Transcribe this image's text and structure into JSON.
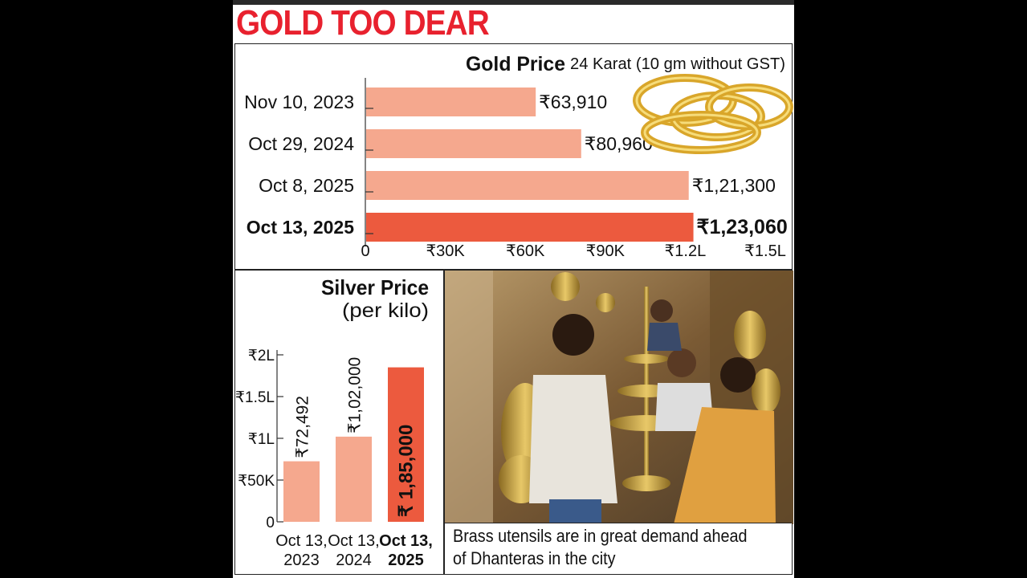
{
  "headline": "GOLD TOO DEAR",
  "gold": {
    "title": "Gold Price",
    "subtitle": "24 Karat (10 gm without GST)"
  },
  "silver": {
    "title": "Silver Price",
    "subtitle": "(per kilo)"
  },
  "photo": {
    "caption_line1": "Brass utensils are in great demand ahead",
    "caption_line2": "of Dhanteras in the city",
    "image_icon": "shop-photo-icon"
  },
  "colors": {
    "headline_red": "#e8212e",
    "bar_light": "#f5a88e",
    "bar_highlight": "#ec5a3e"
  },
  "chart_data": [
    {
      "type": "bar",
      "orientation": "horizontal",
      "title": "Gold Price",
      "subtitle": "24 Karat (10 gm without GST)",
      "categories": [
        "Nov 10, 2023",
        "Oct 29, 2024",
        "Oct 8, 2025",
        "Oct 13, 2025"
      ],
      "values": [
        63910,
        80960,
        121300,
        123060
      ],
      "value_labels": [
        "₹63,910",
        "₹80,960",
        "₹1,21,300",
        "₹1,23,060"
      ],
      "highlight_index": 3,
      "xlim": [
        0,
        150000
      ],
      "ticks": [
        0,
        30000,
        60000,
        90000,
        120000,
        150000
      ],
      "tick_labels": [
        "0",
        "₹30K",
        "₹60K",
        "₹90K",
        "₹1.2L",
        "₹1.5L"
      ],
      "grid": false
    },
    {
      "type": "bar",
      "orientation": "vertical",
      "title": "Silver Price",
      "subtitle": "(per kilo)",
      "categories": [
        [
          "Oct 13,",
          "2023"
        ],
        [
          "Oct 13,",
          "2024"
        ],
        [
          "Oct 13,",
          "2025"
        ]
      ],
      "values": [
        72492,
        102000,
        185000
      ],
      "value_labels": [
        "₹72,492",
        "₹1,02,000",
        "₹ 1,85,000"
      ],
      "highlight_index": 2,
      "ylim": [
        0,
        200000
      ],
      "ticks": [
        0,
        50000,
        100000,
        150000,
        200000
      ],
      "tick_labels": [
        "0",
        "₹50K",
        "₹1L",
        "₹1.5L",
        "₹2L"
      ],
      "grid": false
    }
  ]
}
